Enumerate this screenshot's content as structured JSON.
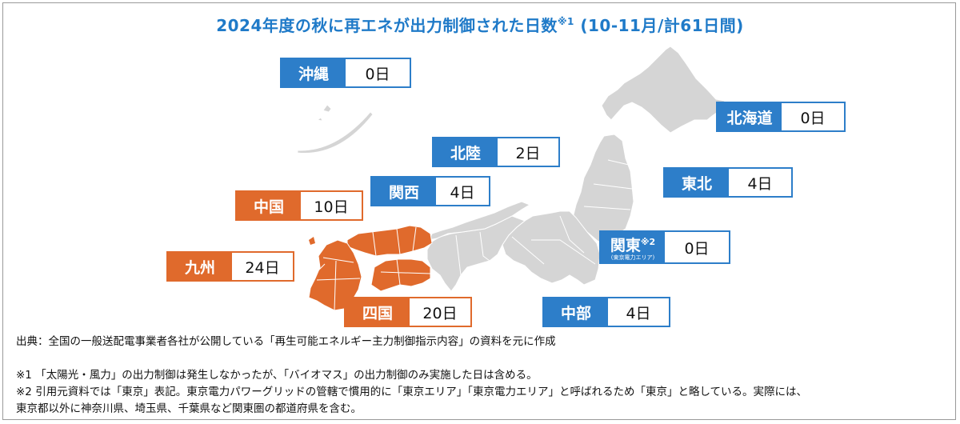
{
  "title": {
    "main": "2024年度の秋に再エネが出力制御された日数",
    "note_mark": "※1",
    "suffix": " (10-11月/計61日間)"
  },
  "colors": {
    "curtailed": "#e06a2c",
    "not_curtailed": "#2d7ec9",
    "land": "#d5d5d5",
    "title": "#1f7ac8"
  },
  "regions": {
    "okinawa": {
      "name": "沖縄",
      "days": "0日"
    },
    "hokkaido": {
      "name": "北海道",
      "days": "0日"
    },
    "hokuriku": {
      "name": "北陸",
      "days": "2日"
    },
    "tohoku": {
      "name": "東北",
      "days": "4日"
    },
    "kansai": {
      "name": "関西",
      "days": "4日"
    },
    "chugoku": {
      "name": "中国",
      "days": "10日"
    },
    "kanto": {
      "name": "関東",
      "mark": "※2",
      "sub": "(東京電力エリア)",
      "days": "0日"
    },
    "kyushu": {
      "name": "九州",
      "days": "24日"
    },
    "shikoku": {
      "name": "四国",
      "days": "20日"
    },
    "chubu": {
      "name": "中部",
      "days": "4日"
    }
  },
  "notes": {
    "source": "出典：全国の一般送配電事業者各社が公開している「再生可能エネルギー主力制御指示内容」の資料を元に作成",
    "note1": "※1 「太陽光・風力」の出力制御は発生しなかったが、「バイオマス」の出力制御のみ実施した日は含める。",
    "note2_line1": "※2 引用元資料では「東京」表記。東京電力パワーグリッドの管轄で慣用的に「東京エリア」「東京電力エリア」と呼ばれるため「東京」と略している。実際には、",
    "note2_line2": "東京都以外に神奈川県、埼玉県、千葉県など関東圏の都道府県を含む。"
  }
}
